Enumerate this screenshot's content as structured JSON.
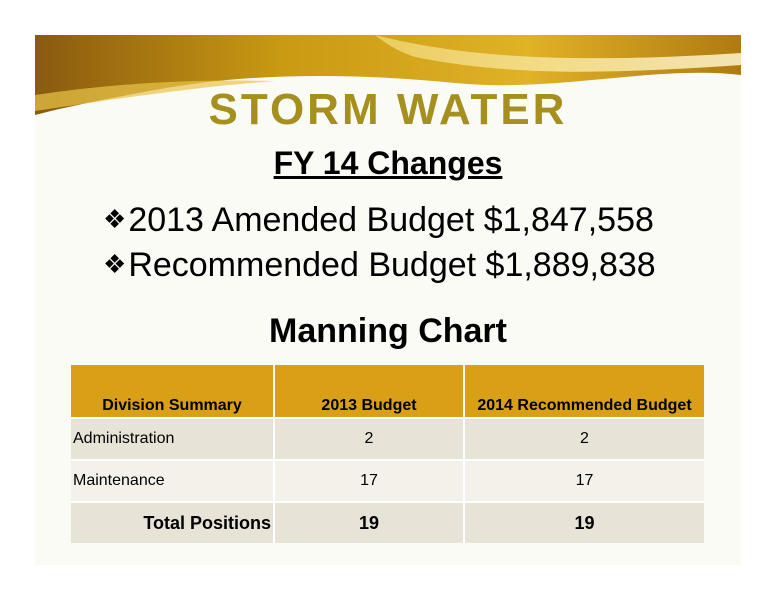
{
  "slide": {
    "title": "STORM WATER",
    "subtitle": "FY 14 Changes",
    "bullets": [
      {
        "icon": "four-diamond-bullet-icon",
        "text": "2013 Amended Budget $1,847,558"
      },
      {
        "icon": "four-diamond-bullet-icon",
        "text": "Recommended Budget $1,889,838"
      }
    ],
    "section_heading": "Manning Chart"
  },
  "table": {
    "headers": [
      "Division Summary",
      "2013 Budget",
      "2014 Recommended Budget"
    ],
    "rows": [
      {
        "division": "Administration",
        "budget_2013": "2",
        "budget_2014": "2"
      },
      {
        "division": "Maintenance",
        "budget_2013": "17",
        "budget_2014": "17"
      }
    ],
    "total": {
      "label": "Total Positions",
      "budget_2013": "19",
      "budget_2014": "19"
    }
  },
  "colors": {
    "title": "#a58f1f",
    "header_fill": "#d9a017",
    "banner_gold": "#c99a12",
    "banner_brown": "#8a5a10"
  }
}
